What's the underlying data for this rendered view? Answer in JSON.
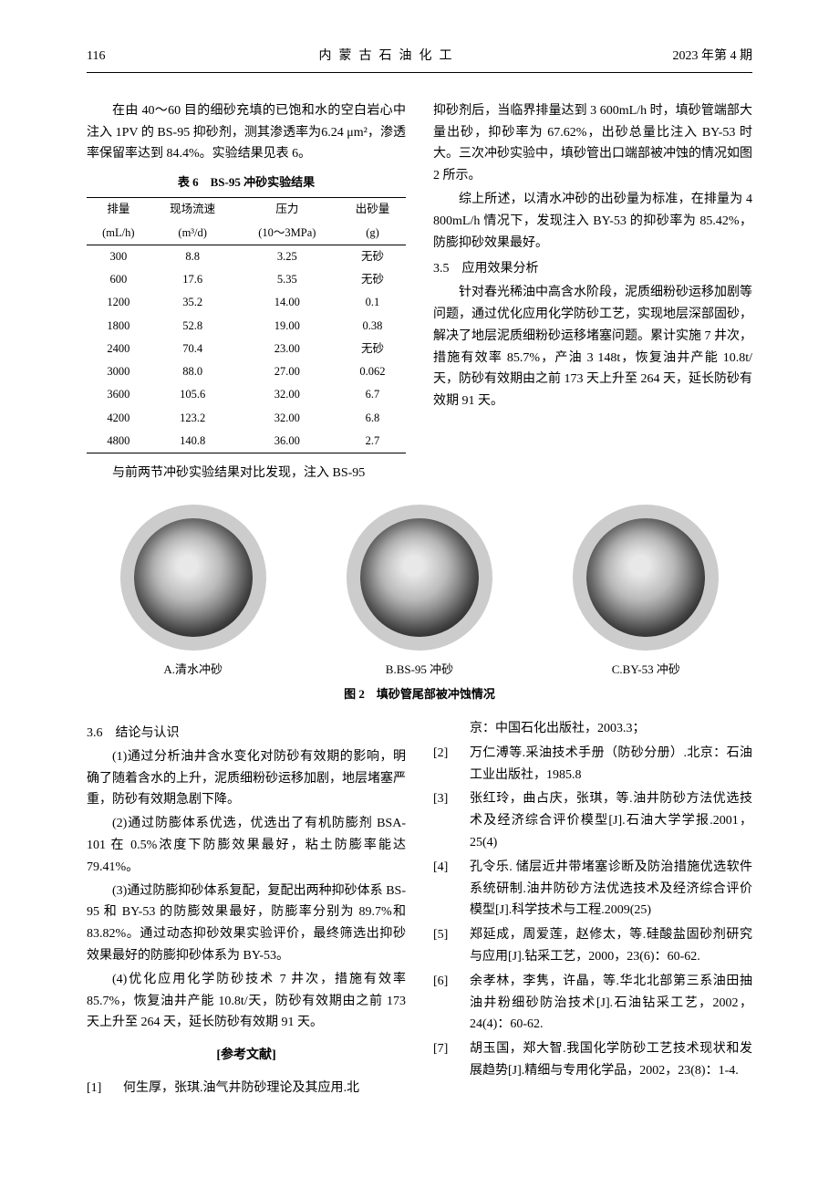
{
  "header": {
    "page_num": "116",
    "journal": "内蒙古石油化工",
    "issue": "2023 年第 4 期"
  },
  "left_col": {
    "intro": "在由 40～60 目的细砂充填的已饱和水的空白岩心中注入 1PV 的 BS-95 抑砂剂，测其渗透率为6.24 μm²，渗透率保留率达到 84.4%。实验结果见表 6。",
    "table6": {
      "caption": "表 6　BS-95 冲砂实验结果",
      "headers": {
        "c1a": "排量",
        "c1b": "(mL/h)",
        "c2a": "现场流速",
        "c2b": "(m³/d)",
        "c3a": "压力",
        "c3b": "(10～3MPa)",
        "c4a": "出砂量",
        "c4b": "(g)"
      },
      "rows": [
        [
          "300",
          "8.8",
          "3.25",
          "无砂"
        ],
        [
          "600",
          "17.6",
          "5.35",
          "无砂"
        ],
        [
          "1200",
          "35.2",
          "14.00",
          "0.1"
        ],
        [
          "1800",
          "52.8",
          "19.00",
          "0.38"
        ],
        [
          "2400",
          "70.4",
          "23.00",
          "无砂"
        ],
        [
          "3000",
          "88.0",
          "27.00",
          "0.062"
        ],
        [
          "3600",
          "105.6",
          "32.00",
          "6.7"
        ],
        [
          "4200",
          "123.2",
          "32.00",
          "6.8"
        ],
        [
          "4800",
          "140.8",
          "36.00",
          "2.7"
        ]
      ]
    },
    "outro": "与前两节冲砂实验结果对比发现，注入 BS-95"
  },
  "right_col": {
    "p1": "抑砂剂后，当临界排量达到 3 600mL/h 时，填砂管端部大量出砂，抑砂率为 67.62%，出砂总量比注入 BY-53 时大。三次冲砂实验中，填砂管出口端部被冲蚀的情况如图 2 所示。",
    "p2": "综上所述，以清水冲砂的出砂量为标准，在排量为 4 800mL/h 情况下，发现注入 BY-53 的抑砂率为 85.42%，防膨抑砂效果最好。",
    "sec35": "3.5　应用效果分析",
    "p3": "针对春光稀油中高含水阶段，泥质细粉砂运移加剧等问题，通过优化应用化学防砂工艺，实现地层深部固砂，解决了地层泥质细粉砂运移堵塞问题。累计实施 7 井次，措施有效率 85.7%，产油 3 148t，恢复油井产能 10.8t/天，防砂有效期由之前 173 天上升至 264 天，延长防砂有效期 91 天。"
  },
  "figure2": {
    "labels": {
      "a": "A.清水冲砂",
      "b": "B.BS-95 冲砂",
      "c": "C.BY-53 冲砂"
    },
    "caption": "图 2　填砂管尾部被冲蚀情况"
  },
  "bottom_left": {
    "sec36": "3.6　结论与认识",
    "c1": "(1)通过分析油井含水变化对防砂有效期的影响，明确了随着含水的上升，泥质细粉砂运移加剧，地层堵塞严重，防砂有效期急剧下降。",
    "c2": "(2)通过防膨体系优选，优选出了有机防膨剂 BSA-101 在 0.5%浓度下防膨效果最好，粘土防膨率能达 79.41%。",
    "c3": "(3)通过防膨抑砂体系复配，复配出两种抑砂体系 BS-95 和 BY-53 的防膨效果最好，防膨率分别为 89.7%和 83.82%。通过动态抑砂效果实验评价，最终筛选出抑砂效果最好的防膨抑砂体系为 BY-53。",
    "c4": "(4)优化应用化学防砂技术 7 井次，措施有效率 85.7%，恢复油井产能 10.8t/天，防砂有效期由之前 173 天上升至 264 天，延长防砂有效期 91 天。",
    "refs_heading": "[参考文献]",
    "ref1_num": "[1]",
    "ref1_body": "何生厚，张琪.油气井防砂理论及其应用.北"
  },
  "bottom_right": {
    "ref1_cont": "京：中国石化出版社，2003.3；",
    "ref2_num": "[2]",
    "ref2_body": "万仁溥等.采油技术手册（防砂分册）.北京：石油工业出版社，1985.8",
    "ref3_num": "[3]",
    "ref3_body": "张红玲，曲占庆，张琪，等.油井防砂方法优选技术及经济综合评价模型[J].石油大学学报.2001，25(4)",
    "ref4_num": "[4]",
    "ref4_body": "孔令乐. 储层近井带堵塞诊断及防治措施优选软件系统研制.油井防砂方法优选技术及经济综合评价模型[J].科学技术与工程.2009(25)",
    "ref5_num": "[5]",
    "ref5_body": "郑延成，周爱莲，赵修太，等.硅酸盐固砂剂研究与应用[J].钻采工艺，2000，23(6)：60-62.",
    "ref6_num": "[6]",
    "ref6_body": "余孝林，李隽，许晶，等.华北北部第三系油田抽油井粉细砂防治技术[J].石油钻采工艺，2002，24(4)：60-62.",
    "ref7_num": "[7]",
    "ref7_body": "胡玉国，郑大智.我国化学防砂工艺技术现状和发展趋势[J].精细与专用化学品，2002，23(8)：1-4."
  }
}
